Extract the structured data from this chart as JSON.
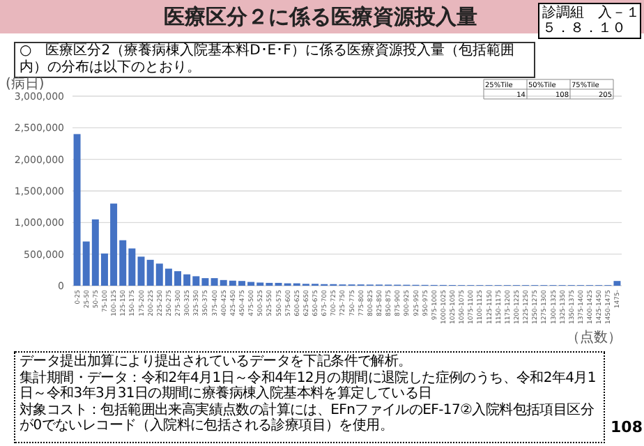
{
  "chart_data": {
    "type": "bar",
    "title": "医療区分２に係る医療資源投入量",
    "subtitle": "○　医療区分2（療養病棟入院基本料D･E･F）に係る医療資源投入量（包括範囲内）の分布は以下のとおり。",
    "ylabel": "(病日)",
    "xlabel": "（点数）",
    "categories": [
      "0-25",
      "25-50",
      "50-75",
      "75-100",
      "100-125",
      "125-150",
      "150-175",
      "175-200",
      "200-225",
      "225-250",
      "250-275",
      "275-300",
      "300-325",
      "325-350",
      "350-375",
      "375-400",
      "400-425",
      "425-450",
      "450-475",
      "475-500",
      "500-525",
      "525-550",
      "550-575",
      "575-600",
      "600-625",
      "625-650",
      "650-675",
      "675-700",
      "700-725",
      "725-750",
      "750-775",
      "775-800",
      "800-825",
      "825-850",
      "850-875",
      "875-900",
      "900-925",
      "925-950",
      "950-975",
      "975-1000",
      "1000-1025",
      "1025-1050",
      "1050-1075",
      "1075-1100",
      "1100-1125",
      "1125-1150",
      "1150-1175",
      "1175-1200",
      "1200-1225",
      "1225-1250",
      "1250-1275",
      "1275-1300",
      "1300-1325",
      "1325-1350",
      "1350-1375",
      "1375-1400",
      "1400-1425",
      "1425-1450",
      "1450-1475",
      "1475-"
    ],
    "values": [
      2400000,
      700000,
      1050000,
      510000,
      1300000,
      720000,
      590000,
      460000,
      410000,
      350000,
      270000,
      230000,
      180000,
      150000,
      120000,
      120000,
      90000,
      80000,
      75000,
      60000,
      50000,
      45000,
      45000,
      38000,
      38000,
      30000,
      30000,
      25000,
      25000,
      20000,
      20000,
      20000,
      18000,
      18000,
      17000,
      16000,
      15000,
      14000,
      13000,
      12000,
      12000,
      11000,
      10000,
      10000,
      10000,
      10000,
      10000,
      10000,
      10000,
      10000,
      10000,
      10000,
      10000,
      10000,
      10000,
      10000,
      10000,
      10000,
      10000,
      75000
    ],
    "color": "#4472c4",
    "ylim": [
      0,
      3000000
    ],
    "yticks": [
      {
        "value": 0,
        "label": "0"
      },
      {
        "value": 500000,
        "label": "500,000"
      },
      {
        "value": 1000000,
        "label": "1,000,000"
      },
      {
        "value": 1500000,
        "label": "1,500,000"
      },
      {
        "value": 2000000,
        "label": "2,000,000"
      },
      {
        "value": 2500000,
        "label": "2,500,000"
      },
      {
        "value": 3000000,
        "label": "3,000,000"
      }
    ],
    "grid": "y",
    "annotations": [
      "診調組　入－１",
      "５．８．１０",
      "25%Tile",
      "50%Tile",
      "75%Tile",
      "14",
      "108",
      "205",
      "データ提出加算により提出されているデータを下記条件で解析。",
      "集計期間・データ：令和2年4月1日～令和4年12月の期間に退院した症例のうち、令和2年4月1日～令和3年3月31日の期間に療養病棟入院基本料を算定している日",
      "対象コスト：包括範囲出来高実績点数の計算には、EFnファイルのEF-17②入院料包括項目区分が0でないレコード（入院料に包括される診療項目）を使用。",
      "108"
    ]
  }
}
